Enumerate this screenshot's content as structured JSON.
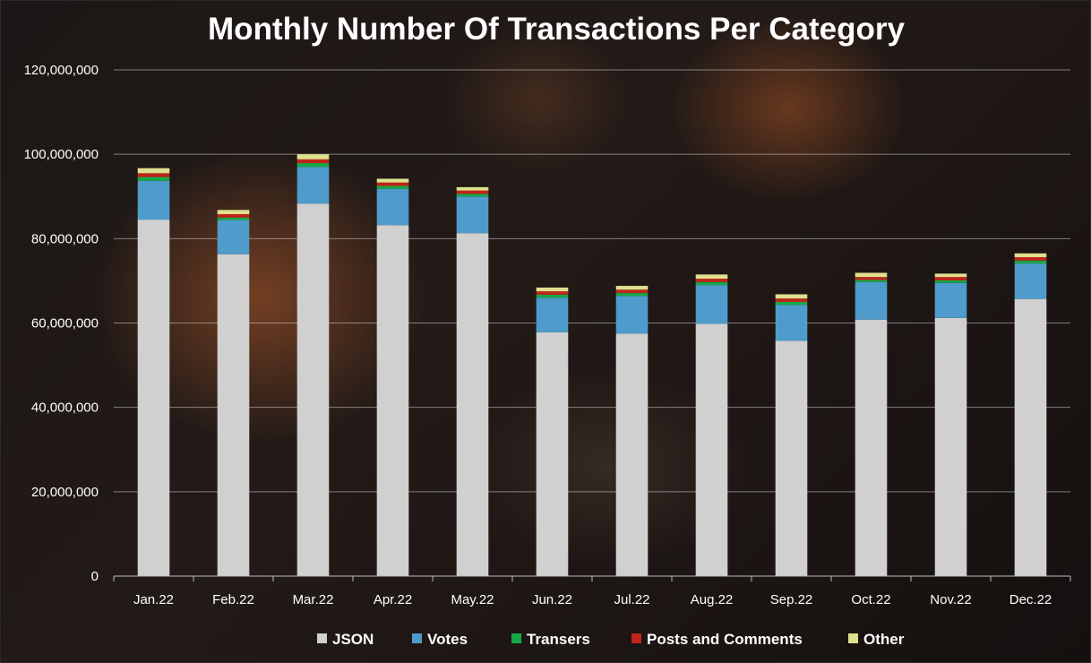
{
  "chart_data": {
    "type": "bar",
    "stacked": true,
    "title": "Monthly Number Of Transactions Per Category",
    "xlabel": "",
    "ylabel": "",
    "ylim": [
      0,
      120000000
    ],
    "yticks": [
      0,
      20000000,
      40000000,
      60000000,
      80000000,
      100000000,
      120000000
    ],
    "ytick_labels": [
      "0",
      "20,000,000",
      "40,000,000",
      "60,000,000",
      "80,000,000",
      "100,000,000",
      "120,000,000"
    ],
    "grid": true,
    "legend_position": "bottom",
    "categories": [
      "Jan.22",
      "Feb.22",
      "Mar.22",
      "Apr.22",
      "May.22",
      "Jun.22",
      "Jul.22",
      "Aug.22",
      "Sep.22",
      "Oct.22",
      "Nov.22",
      "Dec.22"
    ],
    "series": [
      {
        "name": "JSON",
        "color": "#d0d0d0",
        "values": [
          84500000,
          76300000,
          88300000,
          83200000,
          81300000,
          57800000,
          57500000,
          59800000,
          55800000,
          60800000,
          61200000,
          65700000
        ]
      },
      {
        "name": "Votes",
        "color": "#4f9bcb",
        "values": [
          9200000,
          8100000,
          8700000,
          8600000,
          8700000,
          8200000,
          8900000,
          9200000,
          8500000,
          8900000,
          8300000,
          8400000
        ]
      },
      {
        "name": "Transers",
        "color": "#17a847",
        "values": [
          900000,
          600000,
          900000,
          700000,
          600000,
          700000,
          700000,
          700000,
          700000,
          500000,
          600000,
          700000
        ]
      },
      {
        "name": "Posts and Comments",
        "color": "#c0241b",
        "values": [
          900000,
          800000,
          900000,
          800000,
          800000,
          800000,
          800000,
          800000,
          800000,
          700000,
          800000,
          800000
        ]
      },
      {
        "name": "Other",
        "color": "#e0e08e",
        "values": [
          1200000,
          1000000,
          1200000,
          900000,
          800000,
          900000,
          900000,
          1000000,
          1000000,
          1000000,
          800000,
          900000
        ]
      }
    ]
  }
}
